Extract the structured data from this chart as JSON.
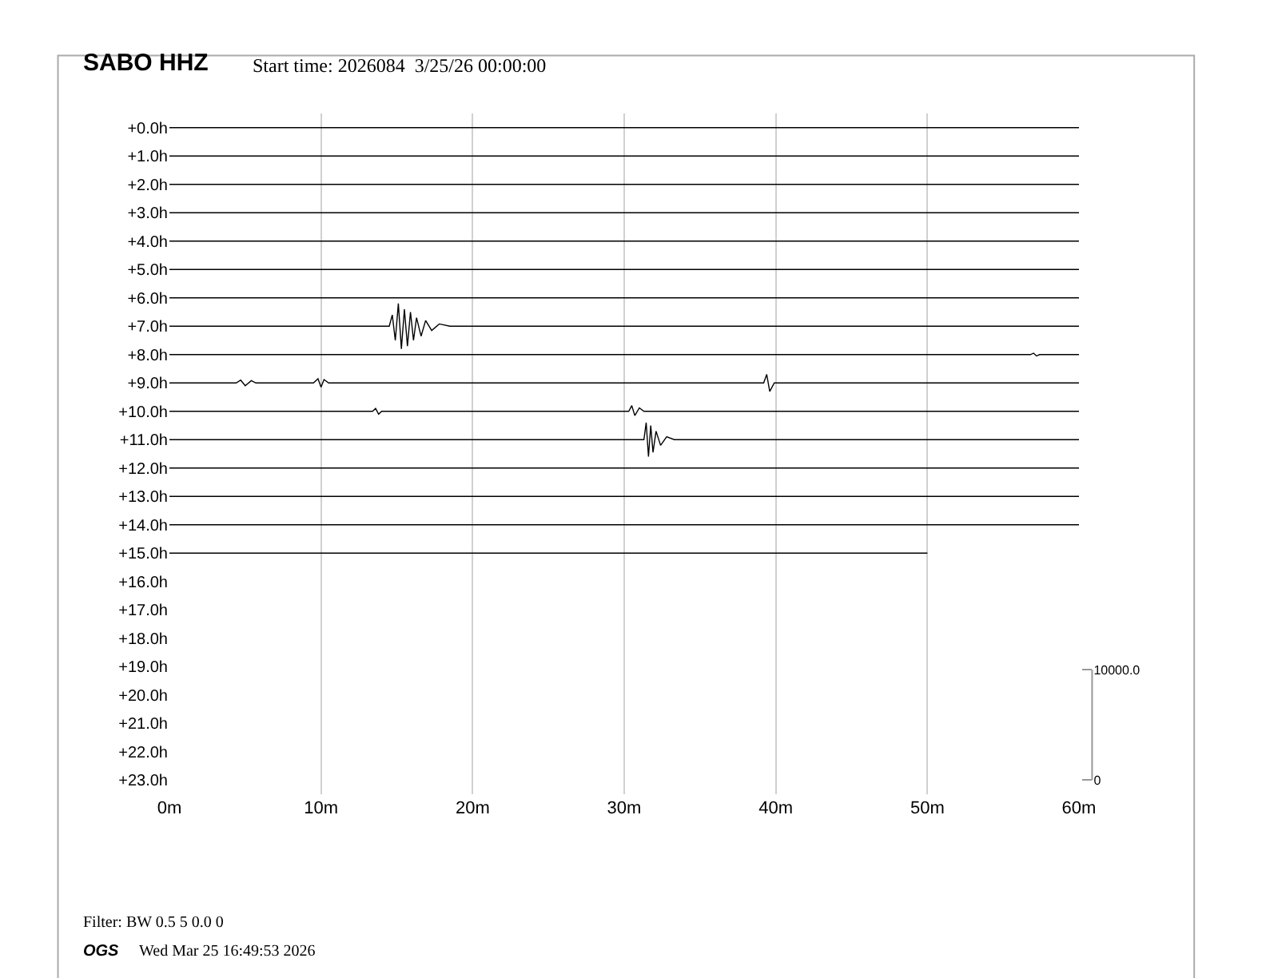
{
  "chart_data": {
    "type": "line",
    "title": "SABO HHZ",
    "subtitle": "Start time: 2026084  3/25/26 00:00:00",
    "annotations": [
      "Filter: BW 0.5 5 0.0 0",
      "OGS",
      "Wed Mar 25 16:49:53 2026"
    ],
    "xlim": [
      0,
      60
    ],
    "xticks": [
      {
        "value": 0,
        "label": "0m"
      },
      {
        "value": 10,
        "label": "10m"
      },
      {
        "value": 20,
        "label": "20m"
      },
      {
        "value": 30,
        "label": "30m"
      },
      {
        "value": 40,
        "label": "40m"
      },
      {
        "value": 50,
        "label": "50m"
      },
      {
        "value": 60,
        "label": "60m"
      }
    ],
    "ylim": [
      23.5,
      -0.5
    ],
    "yticks": [
      {
        "value": 0,
        "label": "+0.0h"
      },
      {
        "value": 1,
        "label": "+1.0h"
      },
      {
        "value": 2,
        "label": "+2.0h"
      },
      {
        "value": 3,
        "label": "+3.0h"
      },
      {
        "value": 4,
        "label": "+4.0h"
      },
      {
        "value": 5,
        "label": "+5.0h"
      },
      {
        "value": 6,
        "label": "+6.0h"
      },
      {
        "value": 7,
        "label": "+7.0h"
      },
      {
        "value": 8,
        "label": "+8.0h"
      },
      {
        "value": 9,
        "label": "+9.0h"
      },
      {
        "value": 10,
        "label": "+10.0h"
      },
      {
        "value": 11,
        "label": "+11.0h"
      },
      {
        "value": 12,
        "label": "+12.0h"
      },
      {
        "value": 13,
        "label": "+13.0h"
      },
      {
        "value": 14,
        "label": "+14.0h"
      },
      {
        "value": 15,
        "label": "+15.0h"
      },
      {
        "value": 16,
        "label": "+16.0h"
      },
      {
        "value": 17,
        "label": "+17.0h"
      },
      {
        "value": 18,
        "label": "+18.0h"
      },
      {
        "value": 19,
        "label": "+19.0h"
      },
      {
        "value": 20,
        "label": "+20.0h"
      },
      {
        "value": 21,
        "label": "+21.0h"
      },
      {
        "value": 22,
        "label": "+22.0h"
      },
      {
        "value": 23,
        "label": "+23.0h"
      }
    ],
    "y2lim": [
      -1285,
      60411
    ],
    "y2ticks": [
      {
        "value": 0,
        "label": "0"
      },
      {
        "value": 10000,
        "label": "10000.0"
      }
    ],
    "grid": "x",
    "marker": "none",
    "line_style": "solid",
    "series": [
      {
        "color": "#000000",
        "x": [
          0,
          60
        ],
        "values": [
          0,
          0
        ]
      },
      {
        "color": "#000000",
        "x": [
          0,
          60
        ],
        "values": [
          1,
          1
        ]
      },
      {
        "color": "#000000",
        "x": [
          0,
          60
        ],
        "values": [
          2,
          2
        ]
      },
      {
        "color": "#000000",
        "x": [
          0,
          60
        ],
        "values": [
          3,
          3
        ]
      },
      {
        "color": "#000000",
        "x": [
          0,
          60
        ],
        "values": [
          4,
          4
        ]
      },
      {
        "color": "#000000",
        "x": [
          0,
          60
        ],
        "values": [
          5,
          5
        ]
      },
      {
        "color": "#000000",
        "x": [
          0,
          60
        ],
        "values": [
          6,
          6
        ]
      },
      {
        "color": "#000000",
        "x": [
          0,
          14.5,
          14.7,
          14.9,
          15.1,
          15.3,
          15.5,
          15.7,
          15.9,
          16.1,
          16.3,
          16.6,
          16.9,
          17.3,
          17.8,
          18.5,
          60
        ],
        "values": [
          7,
          7,
          6.6,
          7.5,
          6.2,
          7.8,
          6.4,
          7.7,
          6.5,
          7.5,
          6.7,
          7.35,
          6.8,
          7.15,
          6.92,
          7,
          7
        ]
      },
      {
        "color": "#000000",
        "x": [
          0,
          56.8,
          57.0,
          57.2,
          57.4,
          60
        ],
        "values": [
          8,
          8,
          7.95,
          8.05,
          8,
          8
        ]
      },
      {
        "color": "#000000",
        "x": [
          0,
          4.4,
          4.7,
          5.0,
          5.4,
          5.7,
          9.5,
          9.8,
          10.0,
          10.2,
          10.5,
          13.0,
          39.2,
          39.4,
          39.6,
          39.9,
          60
        ],
        "values": [
          9,
          9,
          8.9,
          9.1,
          8.92,
          9,
          9,
          8.85,
          9.15,
          8.88,
          9,
          9,
          9,
          8.7,
          9.3,
          9,
          9
        ]
      },
      {
        "color": "#000000",
        "x": [
          0,
          13.4,
          13.6,
          13.8,
          14.0,
          30.3,
          30.5,
          30.7,
          31.0,
          31.3,
          60
        ],
        "values": [
          10,
          10,
          9.9,
          10.1,
          10,
          10,
          9.8,
          10.15,
          9.88,
          10,
          10
        ]
      },
      {
        "color": "#000000",
        "x": [
          0,
          31.3,
          31.45,
          31.6,
          31.75,
          31.9,
          32.1,
          32.4,
          32.8,
          33.3,
          60
        ],
        "values": [
          11,
          11,
          10.4,
          11.6,
          10.5,
          11.45,
          10.7,
          11.2,
          10.9,
          11,
          11
        ]
      },
      {
        "color": "#000000",
        "x": [
          0,
          60
        ],
        "values": [
          12,
          12
        ]
      },
      {
        "color": "#000000",
        "x": [
          0,
          60
        ],
        "values": [
          13,
          13
        ]
      },
      {
        "color": "#000000",
        "x": [
          0,
          60
        ],
        "values": [
          14,
          14
        ]
      },
      {
        "color": "#000000",
        "x": [
          0,
          50
        ],
        "values": [
          15,
          15
        ]
      }
    ]
  }
}
